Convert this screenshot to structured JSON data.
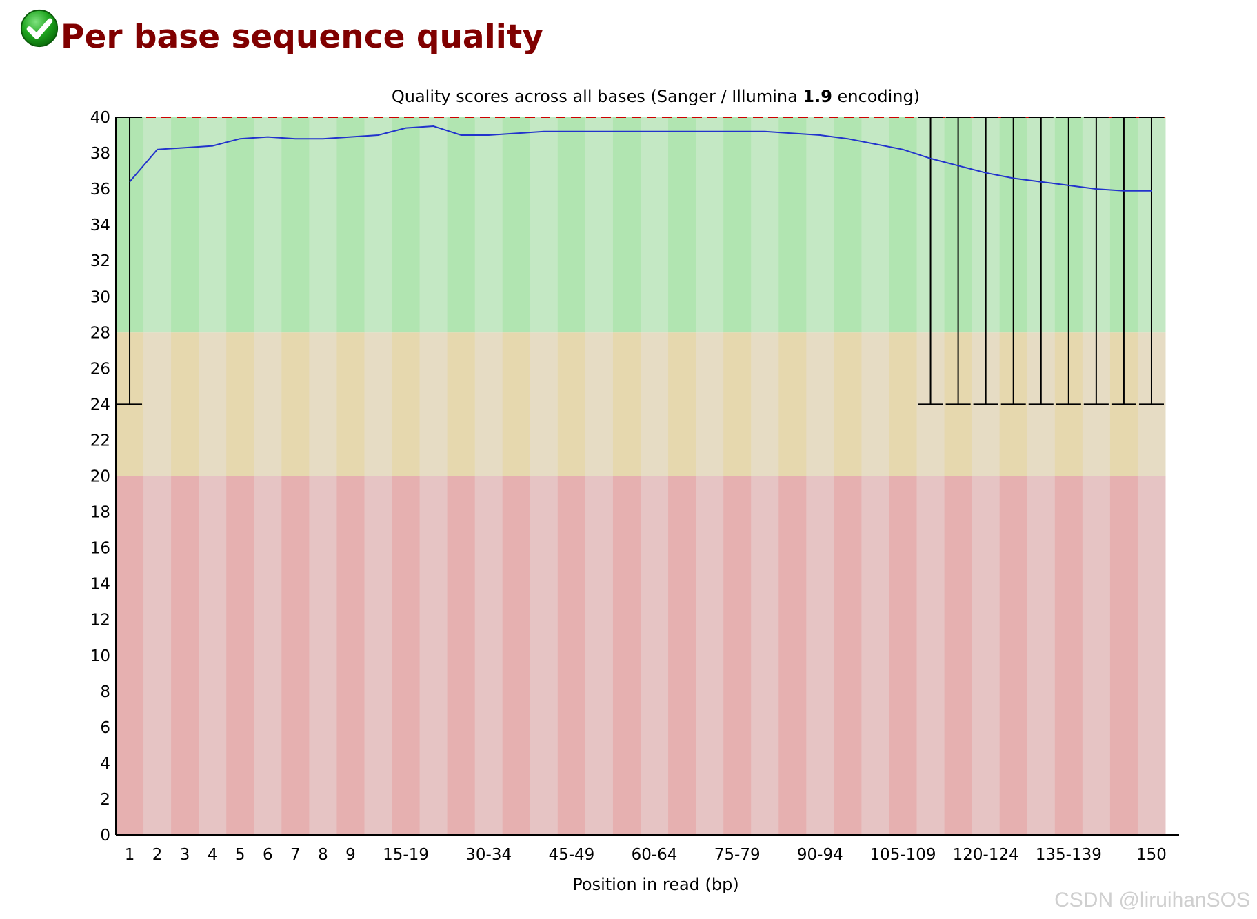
{
  "header": {
    "title": "Per base sequence quality",
    "status_icon": "pass-check-icon"
  },
  "watermark": "CSDN @liruihanSOS",
  "colors": {
    "title": "#800000",
    "good_zone": [
      "#b1e5b1",
      "#c4e8c4"
    ],
    "warn_zone": [
      "#e6d8ae",
      "#e6dcc4"
    ],
    "bad_zone": [
      "#e6b0b0",
      "#e6c4c4"
    ],
    "mean_line": "#2233cc",
    "whisker": "#000000",
    "reference_line": "#cc0000"
  },
  "chart_data": {
    "type": "line",
    "title_parts": [
      "Quality scores across all bases (Sanger / Illumina ",
      "1.9",
      " encoding)"
    ],
    "xlabel": "Position in read (bp)",
    "ylabel": "",
    "ylim": [
      0,
      40
    ],
    "yticks": [
      0,
      2,
      4,
      6,
      8,
      10,
      12,
      14,
      16,
      18,
      20,
      22,
      24,
      26,
      28,
      30,
      32,
      34,
      36,
      38,
      40
    ],
    "zones": [
      {
        "from": 28,
        "to": 40,
        "quality": "good"
      },
      {
        "from": 20,
        "to": 28,
        "quality": "warning"
      },
      {
        "from": 0,
        "to": 20,
        "quality": "bad"
      }
    ],
    "categories": [
      "1",
      "2",
      "3",
      "4",
      "5",
      "6",
      "7",
      "8",
      "9",
      "10-14",
      "15-19",
      "20-24",
      "25-29",
      "30-34",
      "35-39",
      "40-44",
      "45-49",
      "50-54",
      "55-59",
      "60-64",
      "65-69",
      "70-74",
      "75-79",
      "80-84",
      "85-89",
      "90-94",
      "95-99",
      "100-104",
      "105-109",
      "110-114",
      "115-119",
      "120-124",
      "125-129",
      "130-134",
      "135-139",
      "140-144",
      "145-149",
      "150"
    ],
    "visible_tick_labels": [
      "1",
      "2",
      "3",
      "4",
      "5",
      "6",
      "7",
      "8",
      "9",
      "15-19",
      "30-34",
      "45-49",
      "60-64",
      "75-79",
      "90-94",
      "105-109",
      "120-124",
      "135-139",
      "150"
    ],
    "series": [
      {
        "values": [
          36.4,
          38.2,
          38.3,
          38.4,
          38.8,
          38.9,
          38.8,
          38.8,
          38.9,
          39.0,
          39.4,
          39.5,
          39.0,
          39.0,
          39.1,
          39.2,
          39.2,
          39.2,
          39.2,
          39.2,
          39.2,
          39.2,
          39.2,
          39.2,
          39.1,
          39.0,
          38.8,
          38.5,
          38.2,
          37.7,
          37.3,
          36.9,
          36.6,
          36.4,
          36.2,
          36.0,
          35.9,
          35.9
        ]
      }
    ],
    "whiskers": [
      {
        "category": "1",
        "low": 24,
        "high": 40
      },
      {
        "category": "110-114",
        "low": 24,
        "high": 40
      },
      {
        "category": "115-119",
        "low": 24,
        "high": 40
      },
      {
        "category": "120-124",
        "low": 24,
        "high": 40
      },
      {
        "category": "125-129",
        "low": 24,
        "high": 40
      },
      {
        "category": "130-134",
        "low": 24,
        "high": 40
      },
      {
        "category": "135-139",
        "low": 24,
        "high": 40
      },
      {
        "category": "140-144",
        "low": 24,
        "high": 40
      },
      {
        "category": "145-149",
        "low": 24,
        "high": 40
      },
      {
        "category": "150",
        "low": 24,
        "high": 40
      }
    ],
    "grid": false,
    "legend": "none"
  }
}
